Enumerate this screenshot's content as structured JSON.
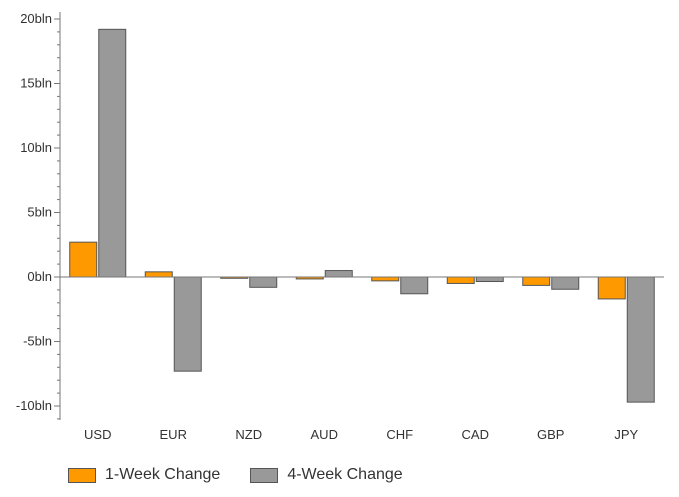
{
  "chart_data": {
    "type": "bar",
    "categories": [
      "USD",
      "EUR",
      "NZD",
      "AUD",
      "CHF",
      "CAD",
      "GBP",
      "JPY"
    ],
    "series": [
      {
        "name": "1-Week Change",
        "color": "#ff9900",
        "values": [
          2.7,
          0.4,
          -0.1,
          -0.15,
          -0.3,
          -0.5,
          -0.65,
          -1.7
        ]
      },
      {
        "name": "4-Week Change",
        "color": "#999999",
        "values": [
          19.2,
          -7.3,
          -0.8,
          0.5,
          -1.3,
          -0.35,
          -0.95,
          -9.7
        ]
      }
    ],
    "yticks": [
      {
        "value": 20,
        "label": "20bln"
      },
      {
        "value": 15,
        "label": "15bln"
      },
      {
        "value": 10,
        "label": "10bln"
      },
      {
        "value": 5,
        "label": "5bln"
      },
      {
        "value": 0,
        "label": "0bln"
      },
      {
        "value": -5,
        "label": "-5bln"
      },
      {
        "value": -10,
        "label": "-10bln"
      }
    ],
    "ylim": [
      -11,
      20.5
    ],
    "xlabel": "",
    "ylabel": "",
    "legend_position": "bottom-left",
    "grid": false
  }
}
